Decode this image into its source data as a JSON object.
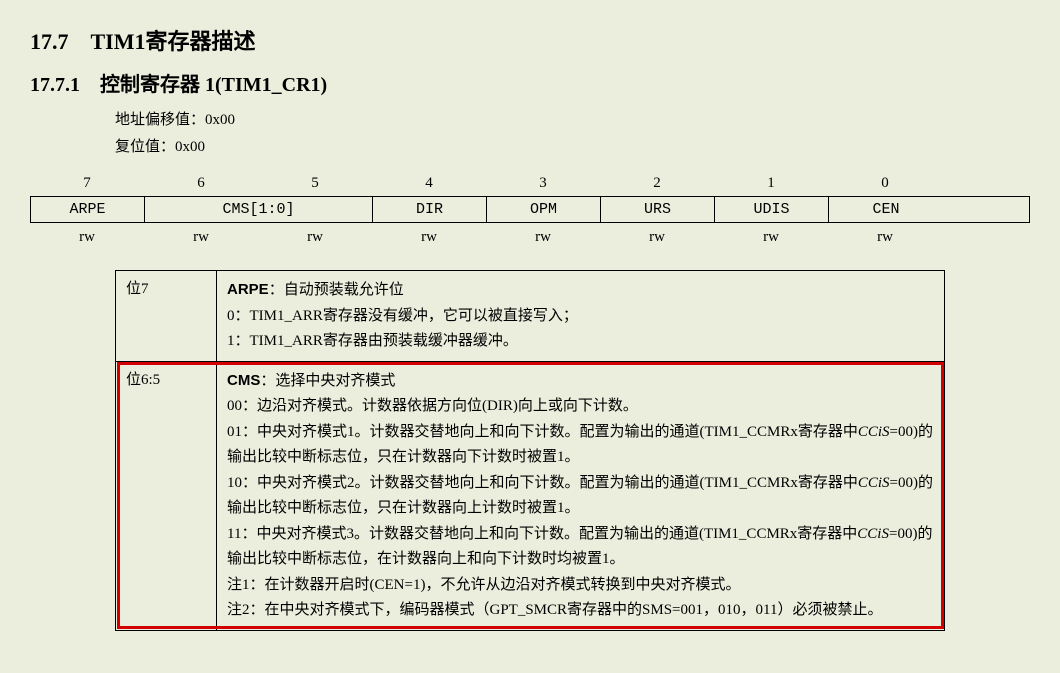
{
  "heading1": "17.7　TIM1寄存器描述",
  "heading2": "17.7.1　控制寄存器 1(TIM1_CR1)",
  "addrLabel": "地址偏移值：0x00",
  "resetLabel": "复位值：0x00",
  "bits": [
    "7",
    "6",
    "5",
    "4",
    "3",
    "2",
    "1",
    "0"
  ],
  "fields": {
    "arpe": "ARPE",
    "cms": "CMS[1:0]",
    "dir": "DIR",
    "opm": "OPM",
    "urs": "URS",
    "udis": "UDIS",
    "cen": "CEN"
  },
  "rw": "rw",
  "row7": {
    "bit": "位7",
    "name": "ARPE",
    "sep": "：",
    "title": "自动预装载允许位",
    "l0": "0：TIM1_ARR寄存器没有缓冲，它可以被直接写入；",
    "l1": "1：TIM1_ARR寄存器由预装载缓冲器缓冲。"
  },
  "row65": {
    "bit": "位6:5",
    "name": "CMS",
    "sep": "：",
    "title": "选择中央对齐模式",
    "m00": "00：边沿对齐模式。计数器依据方向位(DIR)向上或向下计数。",
    "m01a": "01：中央对齐模式1。计数器交替地向上和向下计数。配置为输出的通道(TIM1_CCMRx寄存器中",
    "m01b_i": "CCiS",
    "m01c": "=00)的输出比较中断标志位，只在计数器向下计数时被置1。",
    "m10a": "10：中央对齐模式2。计数器交替地向上和向下计数。配置为输出的通道(TIM1_CCMRx寄存器中",
    "m10b_i": "CCiS",
    "m10c": "=00)的输出比较中断标志位，只在计数器向上计数时被置1。",
    "m11a": "11：中央对齐模式3。计数器交替地向上和向下计数。配置为输出的通道(TIM1_CCMRx寄存器中",
    "m11b_i": "CCiS",
    "m11c": "=00)的输出比较中断标志位，在计数器向上和向下计数时均被置1。",
    "n1": "注1：在计数器开启时(CEN=1)，不允许从边沿对齐模式转换到中央对齐模式。",
    "n2": "注2：在中央对齐模式下，编码器模式（GPT_SMCR寄存器中的SMS=001，010，011）必须被禁止。"
  }
}
